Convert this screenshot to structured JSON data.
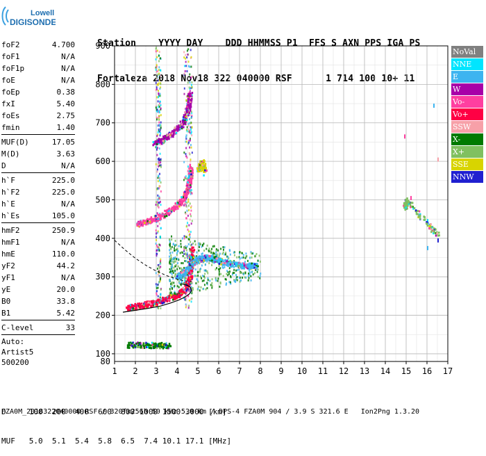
{
  "logo": {
    "line1": "Lowell",
    "line2": "DIGISONDE"
  },
  "header": {
    "row1": "Station    YYYY DAY    DDD HHMMSS P1  FFS S AXN PPS IGA PS",
    "row2": "Fortaleza 2018 Nov18 322 040000 RSF      1 714 100 10+ 11"
  },
  "params": {
    "group1": [
      {
        "label": "foF2",
        "value": "4.700"
      },
      {
        "label": "foF1",
        "value": "N/A"
      },
      {
        "label": "foF1p",
        "value": "N/A"
      },
      {
        "label": "foE",
        "value": "N/A"
      },
      {
        "label": "foEp",
        "value": "0.38"
      },
      {
        "label": "fxI",
        "value": "5.40"
      },
      {
        "label": "foEs",
        "value": "2.75"
      },
      {
        "label": "fmin",
        "value": "1.40"
      }
    ],
    "group2": [
      {
        "label": "MUF(D)",
        "value": "17.05"
      },
      {
        "label": "M(D)",
        "value": "3.63"
      },
      {
        "label": "D",
        "value": "N/A"
      }
    ],
    "group3": [
      {
        "label": "h`F",
        "value": "225.0"
      },
      {
        "label": "h`F2",
        "value": "225.0"
      },
      {
        "label": "h`E",
        "value": "N/A"
      },
      {
        "label": "h`Es",
        "value": "105.0"
      }
    ],
    "group4": [
      {
        "label": "hmF2",
        "value": "250.9"
      },
      {
        "label": "hmF1",
        "value": "N/A"
      },
      {
        "label": "hmE",
        "value": "110.0"
      },
      {
        "label": "yF2",
        "value": "44.2"
      },
      {
        "label": "yF1",
        "value": "N/A"
      },
      {
        "label": "yE",
        "value": "20.0"
      },
      {
        "label": "B0",
        "value": "33.8"
      },
      {
        "label": "B1",
        "value": "5.42"
      }
    ],
    "group5": [
      {
        "label": "C-level",
        "value": "33"
      }
    ]
  },
  "auto": {
    "line1": "Auto:",
    "line2": "Artist5",
    "line3": "500200"
  },
  "legend": [
    {
      "label": "NoVal",
      "color": "#808080"
    },
    {
      "label": "NNE",
      "color": "#00e5ff"
    },
    {
      "label": "E",
      "color": "#3db4f0"
    },
    {
      "label": "W",
      "color": "#a800a8"
    },
    {
      "label": "Vo-",
      "color": "#ff3fa0"
    },
    {
      "label": "Vo+",
      "color": "#ff0044"
    },
    {
      "label": "SSW",
      "color": "#f7a0a8"
    },
    {
      "label": "X-",
      "color": "#007a00"
    },
    {
      "label": "X+",
      "color": "#80c060"
    },
    {
      "label": "SSE",
      "color": "#d8d400"
    },
    {
      "label": "NNW",
      "color": "#2020d0"
    }
  ],
  "footer": {
    "line1": "D     100  200  400  600  800 1000 1500 3000 [km]",
    "line2": "MUF   5.0  5.1  5.4  5.8  6.5  7.4 10.1 17.1 [MHz]",
    "line3": "FZA0M_2018322040000.RSF / 320fx256h 50 kHz 5.0 km / DPS-4 FZA0M 904 / 3.9 S 321.6 E   Ion2Png 1.3.20"
  },
  "chart_data": {
    "type": "scatter",
    "title": "",
    "xlabel": "",
    "ylabel": "",
    "xlim": [
      1,
      17
    ],
    "ylim": [
      80,
      900
    ],
    "x_ticks": [
      1,
      2,
      3,
      4,
      5,
      6,
      7,
      8,
      9,
      10,
      11,
      12,
      13,
      14,
      15,
      16,
      17
    ],
    "y_ticks": [
      100,
      200,
      300,
      400,
      500,
      600,
      700,
      800,
      900
    ],
    "y_tick_labels": [
      "100",
      "200",
      "300",
      "400",
      "500",
      "600",
      "700",
      "800",
      "900"
    ],
    "extra_y_label": "80",
    "grid": true,
    "legend_position": "right",
    "traces": [
      {
        "name": "Vo+",
        "points": [
          [
            1.6,
            222
          ],
          [
            1.9,
            224
          ],
          [
            2.2,
            228
          ],
          [
            2.6,
            232
          ],
          [
            3.0,
            236
          ],
          [
            3.4,
            242
          ],
          [
            3.8,
            250
          ],
          [
            4.1,
            258
          ],
          [
            4.4,
            270
          ],
          [
            4.6,
            300
          ],
          [
            4.65,
            340
          ],
          [
            4.7,
            380
          ]
        ]
      },
      {
        "name": "Vo-",
        "points": [
          [
            2.1,
            440
          ],
          [
            2.5,
            444
          ],
          [
            2.9,
            452
          ],
          [
            3.3,
            462
          ],
          [
            3.7,
            476
          ],
          [
            4.0,
            490
          ],
          [
            4.3,
            508
          ],
          [
            4.5,
            530
          ],
          [
            4.6,
            560
          ],
          [
            4.65,
            590
          ]
        ]
      },
      {
        "name": "W",
        "points": [
          [
            2.9,
            650
          ],
          [
            3.2,
            656
          ],
          [
            3.5,
            664
          ],
          [
            3.8,
            676
          ],
          [
            4.1,
            690
          ],
          [
            4.3,
            706
          ],
          [
            4.45,
            728
          ],
          [
            4.55,
            752
          ],
          [
            4.6,
            780
          ]
        ]
      },
      {
        "name": "E",
        "points": [
          [
            4.0,
            300
          ],
          [
            4.3,
            312
          ],
          [
            4.6,
            330
          ],
          [
            4.9,
            345
          ],
          [
            5.2,
            350
          ],
          [
            5.5,
            352
          ],
          [
            5.8,
            348
          ],
          [
            6.2,
            340
          ],
          [
            6.6,
            335
          ],
          [
            7.0,
            332
          ],
          [
            7.4,
            330
          ],
          [
            7.8,
            330
          ]
        ]
      },
      {
        "name": "X-",
        "points": [
          [
            1.6,
            125
          ],
          [
            2.2,
            125
          ],
          [
            2.8,
            124
          ],
          [
            3.2,
            124
          ],
          [
            3.6,
            124
          ]
        ]
      },
      {
        "name": "SSE",
        "points": [
          [
            5.0,
            580
          ],
          [
            5.1,
            590
          ],
          [
            5.2,
            600
          ],
          [
            5.3,
            570
          ]
        ]
      },
      {
        "name": "X+",
        "points": [
          [
            14.9,
            480
          ],
          [
            15.0,
            500
          ],
          [
            16.0,
            440
          ],
          [
            16.5,
            410
          ]
        ]
      }
    ],
    "model_profile": {
      "name": "profile",
      "points": [
        [
          1.4,
          208
        ],
        [
          2.0,
          213
        ],
        [
          2.6,
          218
        ],
        [
          3.2,
          224
        ],
        [
          3.7,
          232
        ],
        [
          4.1,
          240
        ],
        [
          4.4,
          248
        ],
        [
          4.6,
          256
        ],
        [
          4.7,
          264
        ],
        [
          4.65,
          272
        ],
        [
          4.5,
          278
        ],
        [
          4.2,
          282
        ]
      ]
    },
    "dashed_trace": {
      "name": "extrapolation",
      "points": [
        [
          1.0,
          395
        ],
        [
          1.5,
          370
        ],
        [
          2.0,
          348
        ],
        [
          2.5,
          330
        ],
        [
          3.0,
          315
        ],
        [
          3.5,
          303
        ],
        [
          4.0,
          294
        ],
        [
          4.3,
          290
        ],
        [
          4.7,
          288
        ]
      ]
    }
  }
}
